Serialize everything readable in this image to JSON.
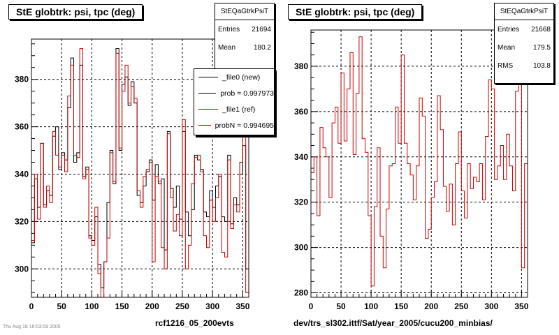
{
  "canvas": {
    "footnote": "Thu Aug 18 16:03:09 2005"
  },
  "panels": [
    {
      "title": "StE globtrk: psi, tpc (deg)",
      "caption": "rcf1216_05_200evts",
      "stats": {
        "name": "StEQaGtrkPsiT",
        "entries_label": "Entries",
        "entries": "21694",
        "mean_label": "Mean",
        "mean": "180.2"
      },
      "legend": [
        {
          "label": "_file0 (new)",
          "color": "#000000"
        },
        {
          "label": "prob = 0.997973",
          "color": "#000000"
        },
        {
          "label": "_file1 (ref)",
          "color": "#cc0000"
        },
        {
          "label": "probN = 0.994695",
          "color": "#cc0000"
        }
      ]
    },
    {
      "title": "StE globtrk: psi, tpc (deg)",
      "caption": "dev/trs_sl302.ittf/Sat/year_2005/cucu200_minbias/",
      "stats": {
        "name": "StEQaGtrkPsiT",
        "entries_label": "Entries",
        "entries": "21668",
        "mean_label": "Mean",
        "mean": "179.5",
        "rms_label": "RMS",
        "rms": "103.8"
      }
    }
  ],
  "chart_data": [
    {
      "type": "line",
      "style": "step-histogram",
      "xlim": [
        0,
        360
      ],
      "ylim": [
        288,
        397
      ],
      "xticks": [
        0,
        50,
        100,
        150,
        200,
        250,
        300,
        350
      ],
      "yticks": [
        300,
        320,
        340,
        360,
        380
      ],
      "grid": true,
      "bin_width": 5,
      "series": [
        {
          "name": "_file0 (new)",
          "color": "#000000",
          "values": [
            311,
            338,
            326,
            353,
            327,
            333,
            331,
            356,
            360,
            342,
            349,
            346,
            368,
            389,
            345,
            349,
            386,
            339,
            343,
            314,
            312,
            322,
            302,
            292,
            303,
            328,
            350,
            336,
            393,
            350,
            378,
            381,
            369,
            379,
            370,
            331,
            328,
            335,
            341,
            346,
            329,
            344,
            336,
            338,
            308,
            358,
            334,
            326,
            335,
            321,
            358,
            324,
            314,
            325,
            348,
            346,
            342,
            324,
            322,
            333,
            326,
            335,
            339,
            322,
            320,
            348,
            319,
            330,
            327,
            340,
            352,
            300
          ]
        },
        {
          "name": "_file1 (ref)",
          "color": "#cc0000",
          "values": [
            312,
            340,
            321,
            353,
            326,
            335,
            328,
            358,
            348,
            343,
            348,
            341,
            373,
            386,
            348,
            347,
            393,
            338,
            342,
            313,
            310,
            326,
            298,
            284,
            303,
            313,
            349,
            337,
            391,
            351,
            375,
            386,
            370,
            377,
            372,
            333,
            326,
            339,
            342,
            345,
            303,
            339,
            337,
            309,
            300,
            357,
            330,
            316,
            323,
            314,
            363,
            300,
            310,
            336,
            347,
            348,
            341,
            314,
            309,
            329,
            320,
            330,
            340,
            307,
            305,
            346,
            317,
            327,
            324,
            345,
            357,
            290
          ]
        }
      ]
    },
    {
      "type": "line",
      "style": "step-histogram",
      "xlim": [
        0,
        360
      ],
      "ylim": [
        278,
        396
      ],
      "xticks": [
        0,
        50,
        100,
        150,
        200,
        250,
        300,
        350
      ],
      "yticks": [
        280,
        300,
        320,
        340,
        360,
        380
      ],
      "grid": true,
      "bin_width": 5,
      "series": [
        {
          "name": "_file1 (ref)",
          "color": "#cc0000",
          "values": [
            333,
            340,
            314,
            353,
            344,
            340,
            322,
            355,
            362,
            346,
            377,
            347,
            370,
            386,
            341,
            368,
            393,
            348,
            342,
            314,
            283,
            318,
            344,
            305,
            291,
            317,
            336,
            337,
            362,
            346,
            385,
            346,
            337,
            332,
            321,
            336,
            366,
            358,
            304,
            308,
            322,
            329,
            367,
            352,
            327,
            316,
            328,
            310,
            337,
            351,
            325,
            313,
            337,
            326,
            331,
            329,
            337,
            321,
            349,
            374,
            370,
            330,
            336,
            345,
            330,
            350,
            336,
            325,
            369,
            378,
            291,
            337
          ]
        }
      ]
    }
  ]
}
